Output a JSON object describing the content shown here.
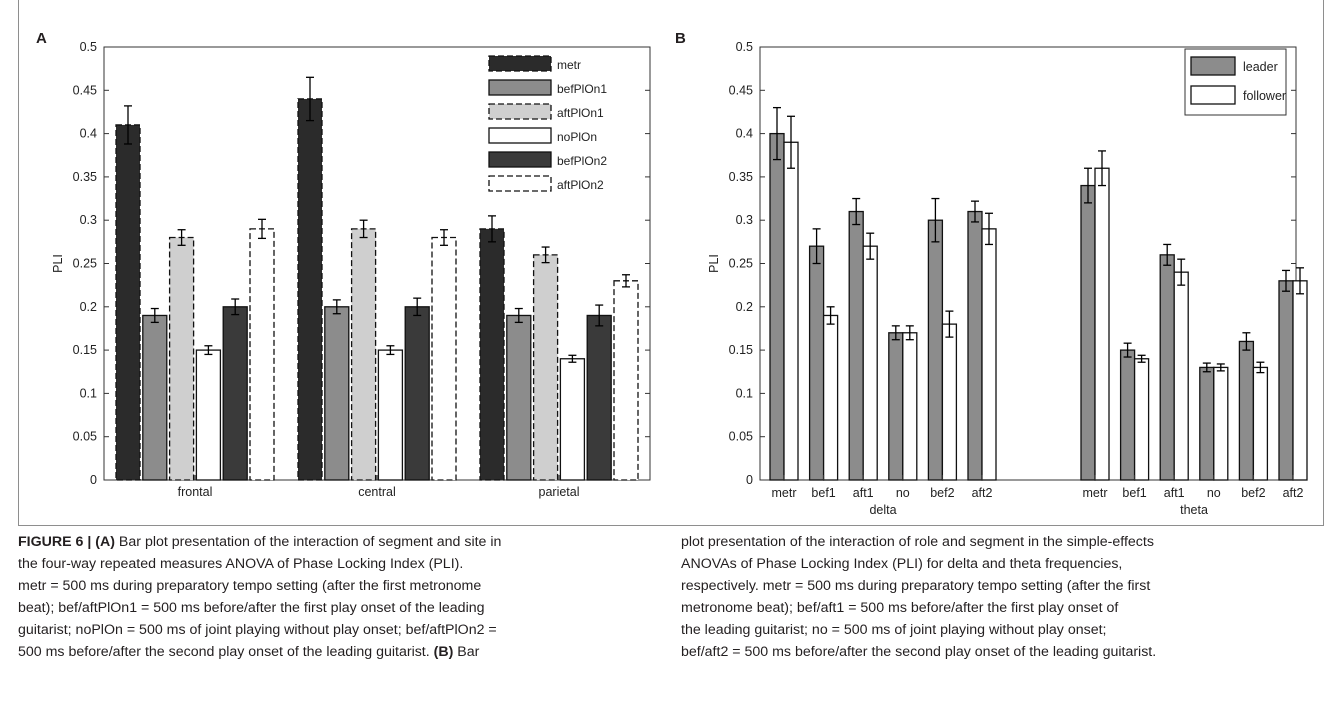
{
  "chart_data": [
    {
      "type": "bar",
      "panel": "A",
      "ylabel": "PLI",
      "xlabel": "",
      "ylim": [
        0,
        0.5
      ],
      "yticks": [
        "0",
        "0.05",
        "0.1",
        "0.15",
        "0.2",
        "0.25",
        "0.3",
        "0.35",
        "0.4",
        "0.45",
        "0.5"
      ],
      "categories": [
        "frontal",
        "central",
        "parietal"
      ],
      "legend_position": "top-right",
      "series": [
        {
          "name": "metr",
          "values": [
            0.41,
            0.44,
            0.29
          ],
          "errors": [
            0.022,
            0.025,
            0.015
          ],
          "fill": "#2b2b2b",
          "dashed": true
        },
        {
          "name": "befPlOn1",
          "values": [
            0.19,
            0.2,
            0.19
          ],
          "errors": [
            0.008,
            0.008,
            0.008
          ],
          "fill": "#8c8c8c",
          "dashed": false
        },
        {
          "name": "aftPlOn1",
          "values": [
            0.28,
            0.29,
            0.26
          ],
          "errors": [
            0.009,
            0.01,
            0.009
          ],
          "fill": "#cfcfcf",
          "dashed": true
        },
        {
          "name": "noPlOn",
          "values": [
            0.15,
            0.15,
            0.14
          ],
          "errors": [
            0.005,
            0.005,
            0.004
          ],
          "fill": "#ffffff",
          "dashed": false
        },
        {
          "name": "befPlOn2",
          "values": [
            0.2,
            0.2,
            0.19
          ],
          "errors": [
            0.009,
            0.01,
            0.012
          ],
          "fill": "#3a3a3a",
          "dashed": false
        },
        {
          "name": "aftPlOn2",
          "values": [
            0.29,
            0.28,
            0.23
          ],
          "errors": [
            0.011,
            0.009,
            0.007
          ],
          "fill": "#ffffff",
          "dashed": true
        }
      ]
    },
    {
      "type": "bar",
      "panel": "B",
      "ylabel": "PLI",
      "xlabel": "",
      "ylim": [
        0,
        0.5
      ],
      "yticks": [
        "0",
        "0.05",
        "0.1",
        "0.15",
        "0.2",
        "0.25",
        "0.3",
        "0.35",
        "0.4",
        "0.45",
        "0.5"
      ],
      "categories": [
        "metr",
        "bef1",
        "aft1",
        "no",
        "bef2",
        "aft2",
        "metr",
        "bef1",
        "aft1",
        "no",
        "bef2",
        "aft2"
      ],
      "groups": [
        {
          "label": "delta",
          "indices": [
            0,
            1,
            2,
            3,
            4,
            5
          ]
        },
        {
          "label": "theta",
          "indices": [
            6,
            7,
            8,
            9,
            10,
            11
          ]
        }
      ],
      "legend_position": "top-right",
      "series": [
        {
          "name": "leader",
          "fill": "#8c8c8c",
          "values": [
            0.4,
            0.27,
            0.31,
            0.17,
            0.3,
            0.31,
            0.34,
            0.15,
            0.26,
            0.13,
            0.16,
            0.23
          ],
          "errors": [
            0.03,
            0.02,
            0.015,
            0.008,
            0.025,
            0.012,
            0.02,
            0.008,
            0.012,
            0.005,
            0.01,
            0.012
          ]
        },
        {
          "name": "follower",
          "fill": "#ffffff",
          "values": [
            0.39,
            0.19,
            0.27,
            0.17,
            0.18,
            0.29,
            0.36,
            0.14,
            0.24,
            0.13,
            0.13,
            0.23
          ],
          "errors": [
            0.03,
            0.01,
            0.015,
            0.008,
            0.015,
            0.018,
            0.02,
            0.004,
            0.015,
            0.004,
            0.006,
            0.015
          ]
        }
      ]
    }
  ],
  "caption": {
    "left_lines": [
      "<b>FIGURE 6 | (A)</b> Bar plot presentation of the interaction of segment and site in",
      "the four-way repeated measures ANOVA of Phase Locking Index (PLI).",
      "metr = 500 ms during preparatory tempo setting (after the first metronome",
      "beat); bef/aftPlOn1 = 500 ms before/after the first play onset of the leading",
      "guitarist; noPlOn = 500 ms of joint playing without play onset; bef/aftPlOn2 =",
      "500 ms before/after the second play onset of the leading guitarist. <b>(B)</b> Bar"
    ],
    "right_lines": [
      "plot presentation of the interaction of role and segment in the simple-effects",
      "ANOVAs of Phase Locking Index (PLI) for delta and theta frequencies,",
      "respectively. metr = 500 ms during preparatory tempo setting (after the first",
      "metronome beat); bef/aft1 = 500 ms before/after the first play onset of",
      "the leading guitarist; no = 500 ms of joint playing without play onset;",
      "bef/aft2 = 500 ms before/after the second play onset of the leading guitarist."
    ]
  }
}
